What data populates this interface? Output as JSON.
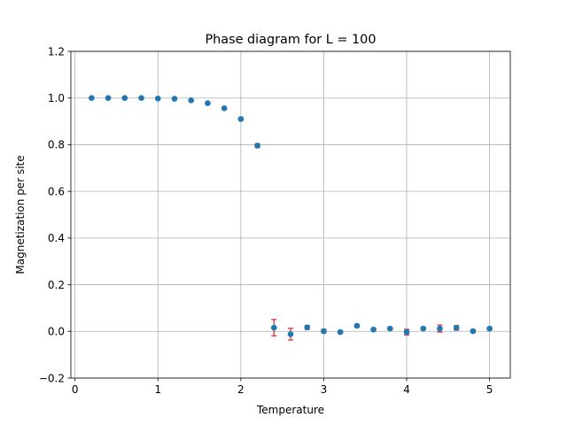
{
  "chart_data": {
    "type": "scatter",
    "title": "Phase diagram for L = 100",
    "xlabel": "Temperature",
    "ylabel": "Magnetization per site",
    "xlim": [
      -0.05,
      5.25
    ],
    "ylim": [
      -0.2,
      1.2
    ],
    "xticks": [
      0,
      1,
      2,
      3,
      4,
      5
    ],
    "yticks": [
      -0.2,
      0.0,
      0.2,
      0.4,
      0.6,
      0.8,
      1.0,
      1.2
    ],
    "xtick_labels": [
      "0",
      "1",
      "2",
      "3",
      "4",
      "5"
    ],
    "ytick_labels": [
      "−0.2",
      "0.0",
      "0.2",
      "0.4",
      "0.6",
      "0.8",
      "1.0",
      "1.2"
    ],
    "grid": true,
    "marker_color": "#1f77b4",
    "errorbar_color": "#d62728",
    "series": [
      {
        "x": [
          0.2,
          0.4,
          0.6,
          0.8,
          1.0,
          1.2,
          1.4,
          1.6,
          1.8,
          2.0,
          2.2,
          2.4,
          2.6,
          2.8,
          3.0,
          3.2,
          3.4,
          3.6,
          3.8,
          4.0,
          4.2,
          4.4,
          4.6,
          4.8,
          5.0
        ],
        "y": [
          1.0,
          1.0,
          1.0,
          1.0,
          0.998,
          0.997,
          0.99,
          0.978,
          0.956,
          0.91,
          0.796,
          0.016,
          -0.012,
          0.017,
          0.001,
          -0.003,
          0.024,
          0.008,
          0.012,
          -0.003,
          0.012,
          0.012,
          0.015,
          0.001,
          0.012
        ],
        "yerr": [
          0.001,
          0.001,
          0.001,
          0.001,
          0.001,
          0.002,
          0.002,
          0.003,
          0.004,
          0.006,
          0.008,
          0.035,
          0.025,
          0.008,
          0.008,
          0.005,
          0.006,
          0.005,
          0.005,
          0.012,
          0.005,
          0.015,
          0.01,
          0.006,
          0.005
        ]
      }
    ]
  }
}
